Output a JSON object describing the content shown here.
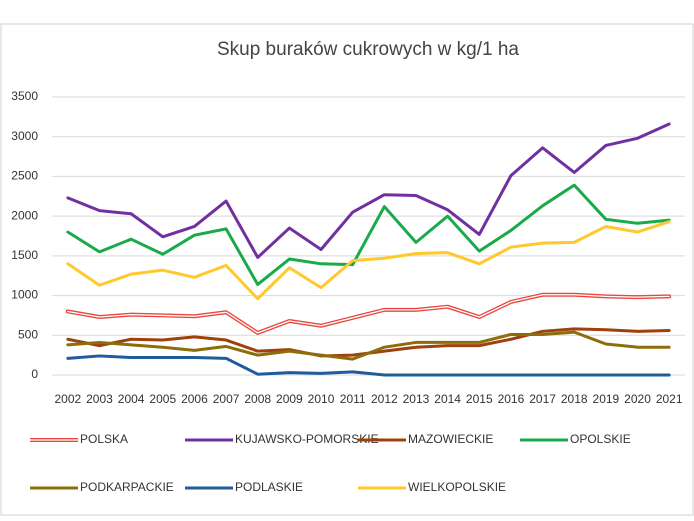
{
  "chart_data": {
    "type": "line",
    "title": "Skup buraków cukrowych w kg/1 ha",
    "categories": [
      "2002",
      "2003",
      "2004",
      "2005",
      "2006",
      "2007",
      "2008",
      "2009",
      "2010",
      "2011",
      "2012",
      "2013",
      "2014",
      "2015",
      "2016",
      "2017",
      "2018",
      "2019",
      "2020",
      "2021"
    ],
    "series": [
      {
        "name": "POLSKA",
        "color": "#e8483f",
        "line_style": "double",
        "values": [
          800,
          730,
          760,
          750,
          740,
          790,
          530,
          680,
          620,
          720,
          820,
          820,
          860,
          730,
          920,
          1010,
          1010,
          990,
          980,
          990
        ]
      },
      {
        "name": "KUJAWSKO-POMORSKIE",
        "color": "#7030a0",
        "values": [
          2230,
          2070,
          2030,
          1740,
          1870,
          2190,
          1480,
          1850,
          1580,
          2050,
          2270,
          2260,
          2080,
          1770,
          2510,
          2860,
          2550,
          2890,
          2980,
          3160
        ]
      },
      {
        "name": "MAZOWIECKIE",
        "color": "#a0400c",
        "values": [
          450,
          370,
          450,
          440,
          480,
          440,
          300,
          320,
          240,
          250,
          300,
          350,
          370,
          370,
          450,
          550,
          580,
          570,
          550,
          560
        ]
      },
      {
        "name": "OPOLSKIE",
        "color": "#1aaa4a",
        "values": [
          1800,
          1550,
          1710,
          1520,
          1760,
          1840,
          1140,
          1460,
          1400,
          1390,
          2120,
          1670,
          2000,
          1560,
          1820,
          2130,
          2390,
          1960,
          1910,
          1950
        ]
      },
      {
        "name": "PODKARPACKIE",
        "color": "#8b6d0a",
        "values": [
          380,
          410,
          380,
          350,
          310,
          360,
          250,
          300,
          250,
          200,
          350,
          410,
          410,
          410,
          510,
          510,
          540,
          390,
          350,
          350
        ]
      },
      {
        "name": "PODLASKIE",
        "color": "#1f5c99",
        "values": [
          210,
          240,
          220,
          220,
          220,
          210,
          10,
          30,
          20,
          40,
          0,
          0,
          0,
          0,
          0,
          0,
          0,
          0,
          0,
          0
        ]
      },
      {
        "name": "WIELKOPOLSKIE",
        "color": "#ffc82c",
        "values": [
          1400,
          1130,
          1270,
          1320,
          1230,
          1380,
          960,
          1350,
          1100,
          1440,
          1470,
          1530,
          1540,
          1400,
          1610,
          1660,
          1670,
          1870,
          1800,
          1930
        ]
      }
    ],
    "ylim": [
      0,
      3500
    ],
    "yticks": [
      0,
      500,
      1000,
      1500,
      2000,
      2500,
      3000,
      3500
    ],
    "grid": true,
    "legend": "bottom"
  }
}
